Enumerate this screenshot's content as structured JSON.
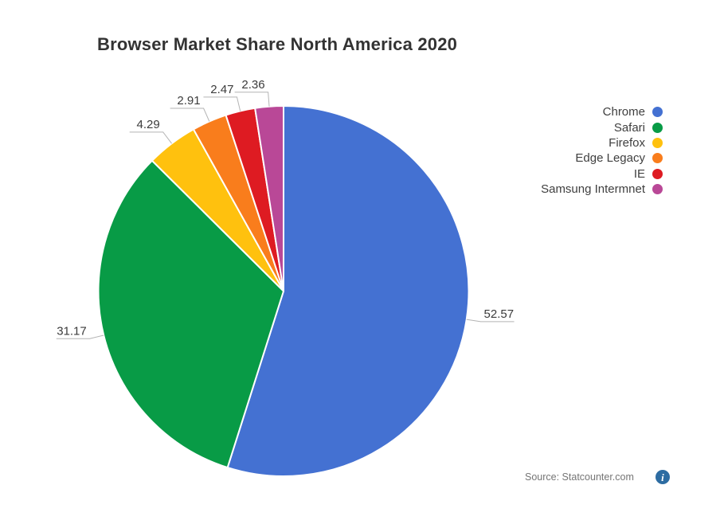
{
  "title": "Browser Market Share North America 2020",
  "chart_data": {
    "type": "pie",
    "title": "Browser Market Share North America 2020",
    "categories": [
      "Chrome",
      "Safari",
      "Firefox",
      "Edge Legacy",
      "IE",
      "Samsung Intermnet"
    ],
    "values": [
      52.57,
      31.17,
      4.29,
      2.91,
      2.47,
      2.36
    ],
    "value_labels": [
      "52.57",
      "31.17",
      "4.29",
      "2.91",
      "2.47",
      "2.36"
    ],
    "colors": [
      "#4471D2",
      "#089B46",
      "#FFC10E",
      "#F97D1C",
      "#DE1B22",
      "#B94897"
    ],
    "direction": "clockwise",
    "start_angle_deg": 0,
    "labels_position": "outside",
    "legend_position": "right",
    "source_note": "Source: Statcounter.com"
  },
  "footer": {
    "info_glyph": "i"
  },
  "style_colors": {
    "title_text": "#333333",
    "label_text": "#3b3b3b",
    "legend_text": "#3f3f3f",
    "leader_line": "#b3b3b3",
    "slice_border": "#ffffff",
    "source_text": "#757575",
    "info_icon_bg": "#2D6CA2"
  }
}
